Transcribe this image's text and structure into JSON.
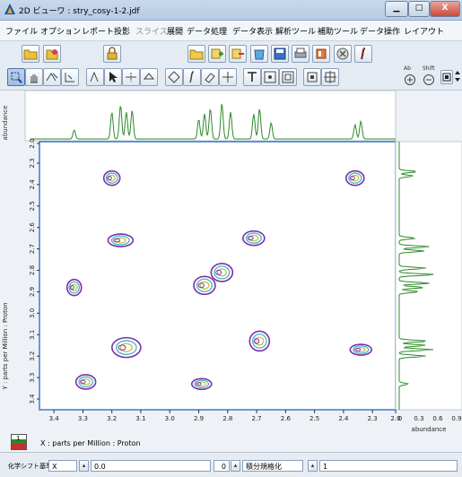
{
  "window": {
    "title": "2D ビューワ : stry_cosy-1-2.jdf",
    "minimize": "▁",
    "maximize": "□",
    "close": "X"
  },
  "menu": [
    "ファイル",
    "オプション",
    "レポート",
    "投影",
    "スライス",
    "展開",
    "データ処理",
    "データ表示",
    "解析ツール",
    "補助ツール",
    "データ操作",
    "レイアウト"
  ],
  "menu_disabled": [
    "スライス"
  ],
  "toolbar": {
    "shift_label": "Shift"
  },
  "plot": {
    "y_axis_label": "Y : parts per Million : Proton",
    "x_axis_label": "X : parts per Million : Proton",
    "top_projection_label": "abundance",
    "right_projection_label": "abundance",
    "x_ticks": [
      "3.4",
      "3.3",
      "3.2",
      "3.1",
      "3.0",
      "2.9",
      "2.8",
      "2.7",
      "2.6",
      "2.5",
      "2.4",
      "2.3",
      "2.0"
    ],
    "y_ticks": [
      "2.0",
      "2.3",
      "2.4",
      "2.5",
      "2.6",
      "2.7",
      "2.8",
      "2.9",
      "3.0",
      "3.1",
      "3.2",
      "3.3",
      "3.4"
    ],
    "right_ticks": [
      "0",
      "0.3",
      "0.6",
      "0.9"
    ],
    "page_number": "1",
    "x_range_ppm": [
      3.45,
      2.22
    ],
    "y_range_ppm": [
      2.2,
      3.45
    ],
    "cross_peaks_ppm": [
      [
        3.2,
        2.37
      ],
      [
        2.36,
        2.37
      ],
      [
        3.17,
        2.66
      ],
      [
        2.71,
        2.65
      ],
      [
        2.82,
        2.81
      ],
      [
        2.88,
        2.87
      ],
      [
        3.33,
        2.88
      ],
      [
        2.69,
        3.13
      ],
      [
        3.15,
        3.16
      ],
      [
        2.34,
        3.17
      ],
      [
        3.29,
        3.32
      ],
      [
        2.89,
        3.33
      ]
    ]
  },
  "bottom": {
    "label": "化学シフト基準",
    "axis_select": "X",
    "value": "0.0",
    "page_field": "0",
    "mode": "積分規格化",
    "mode_value": "1"
  },
  "colors": {
    "spectrum": "#2c8a2c",
    "contour_outer": "#7d2fa8",
    "contour_mid": "#3fb9c9",
    "contour_inner": "#c9b93a",
    "frame": "#3a7bc8"
  }
}
